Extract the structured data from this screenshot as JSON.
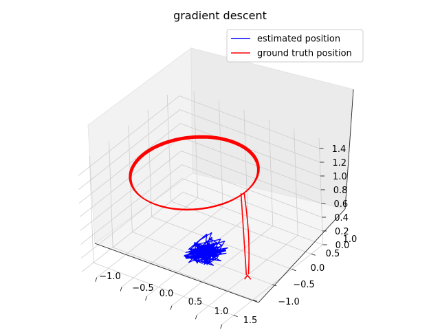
{
  "chart_data": {
    "type": "line",
    "projection": "3d",
    "title": "gradient descent",
    "xlabel": "",
    "ylabel": "",
    "zlabel": "",
    "xlim": [
      -1.3,
      1.5
    ],
    "ylim": [
      -1.3,
      1.3
    ],
    "zlim": [
      0,
      1.55
    ],
    "x_ticks": [
      "−1.0",
      "−0.5",
      "0.0",
      "0.5",
      "1.0",
      "1.5"
    ],
    "y_ticks": [
      "−1.0",
      "−0.5",
      "0.0",
      "0.5",
      "1.0"
    ],
    "z_ticks": [
      "0.0",
      "0.2",
      "0.4",
      "0.6",
      "0.8",
      "1.0",
      "1.2",
      "1.4"
    ],
    "grid": true,
    "legend_position": "top-right",
    "series": [
      {
        "name": "estimated position",
        "color": "#0000ff",
        "description": "dense cluster near x≈0.1, y≈0.1, z≈0.05",
        "x": [
          0.05,
          0.15,
          0.1,
          0.22,
          0.02,
          0.18,
          0.08,
          0.25,
          0.12,
          0.0,
          0.2,
          0.06,
          0.16,
          0.1
        ],
        "y": [
          0.05,
          0.12,
          -0.02,
          0.08,
          0.1,
          0.18,
          0.0,
          0.15,
          0.2,
          0.06,
          0.02,
          0.14,
          0.1,
          0.05
        ],
        "z": [
          0.02,
          0.08,
          0.05,
          0.12,
          0.03,
          0.1,
          0.06,
          0.14,
          0.09,
          0.04,
          0.07,
          0.11,
          0.05,
          0.03
        ]
      },
      {
        "name": "ground truth position",
        "color": "#ff0000",
        "description": "vertical takeoff from (1, 0, 0) to z≈1.2, then circle of radius 1 at z≈1.2",
        "radius": 1.0,
        "altitude": 1.2,
        "takeoff_start": [
          1.0,
          0.0,
          0.0
        ]
      }
    ]
  }
}
